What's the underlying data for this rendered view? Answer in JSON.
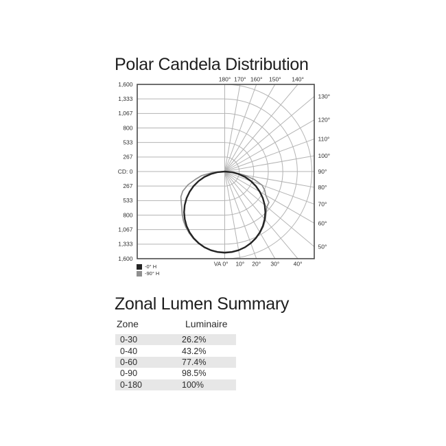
{
  "ui": {
    "polar": {
      "title": "Polar Candela Distribution",
      "left_ticks": [
        "1,600",
        "1,333",
        "1,067",
        "800",
        "533",
        "267",
        "CD: 0",
        "267",
        "533",
        "800",
        "1,067",
        "1,333",
        "1,600"
      ],
      "top_ticks": [
        {
          "label": "180°",
          "angle": 180
        },
        {
          "label": "170°",
          "angle": 170
        },
        {
          "label": "160°",
          "angle": 160
        },
        {
          "label": "150°",
          "angle": 150
        },
        {
          "label": "140°",
          "angle": 140
        }
      ],
      "right_ticks": [
        {
          "label": "130°",
          "angle": 130
        },
        {
          "label": "120°",
          "angle": 120
        },
        {
          "label": "110°",
          "angle": 110
        },
        {
          "label": "100°",
          "angle": 100
        },
        {
          "label": "90°",
          "angle": 90
        },
        {
          "label": "80°",
          "angle": 80
        },
        {
          "label": "70°",
          "angle": 70
        },
        {
          "label": "60°",
          "angle": 60
        },
        {
          "label": "50°",
          "angle": 50
        }
      ],
      "bottom_ticks": [
        {
          "label": "VA 0°",
          "angle": 0
        },
        {
          "label": "10°",
          "angle": 10
        },
        {
          "label": "20°",
          "angle": 20
        },
        {
          "label": "30°",
          "angle": 30
        },
        {
          "label": "40°",
          "angle": 40
        }
      ],
      "legend": [
        {
          "label": "-0° H",
          "color": "#242424"
        },
        {
          "label": "-90° H",
          "color": "#8f8f8f"
        }
      ]
    },
    "zonal": {
      "title": "Zonal Lumen Summary",
      "columns": [
        "Zone",
        "Luminaire"
      ],
      "rows": [
        [
          "0-30",
          "26.2%"
        ],
        [
          "0-40",
          "43.2%"
        ],
        [
          "0-60",
          "77.4%"
        ],
        [
          "0-90",
          "98.5%"
        ],
        [
          "0-180",
          "100%"
        ]
      ]
    }
  },
  "chart_data": [
    {
      "type": "polar_candela",
      "title": "Polar Candela Distribution",
      "radial_axis": {
        "label": "CD: 0",
        "ticks": [
          0,
          267,
          533,
          800,
          1067,
          1333,
          1600
        ],
        "max": 1600
      },
      "angle_step_deg": 10,
      "angle_labels_deg": [
        0,
        10,
        20,
        30,
        40,
        50,
        60,
        70,
        80,
        90,
        100,
        110,
        120,
        130,
        140,
        150,
        160,
        170,
        180
      ],
      "vertical_angle_label_prefix": "VA",
      "grid": true,
      "series": [
        {
          "name": "-0° H",
          "color": "#242424",
          "angles_deg": [
            0,
            5,
            10,
            15,
            20,
            25,
            30,
            35,
            40,
            45,
            50,
            55,
            60,
            65,
            70,
            75,
            80,
            85,
            90
          ],
          "candela_left": [
            1490,
            1484,
            1467,
            1439,
            1400,
            1350,
            1290,
            1221,
            1141,
            1054,
            958,
            855,
            745,
            630,
            510,
            386,
            259,
            130,
            0
          ],
          "candela_right": [
            1490,
            1484,
            1467,
            1439,
            1400,
            1350,
            1290,
            1221,
            1141,
            1054,
            958,
            855,
            745,
            630,
            510,
            386,
            259,
            130,
            0
          ]
        },
        {
          "name": "-90° H",
          "color": "#8f8f8f",
          "angles_deg": [
            0,
            5,
            10,
            15,
            20,
            25,
            30,
            35,
            40,
            45,
            50,
            55,
            60,
            65,
            70,
            75,
            80,
            85,
            90
          ],
          "candela_left": [
            1480,
            1478,
            1468,
            1445,
            1405,
            1360,
            1305,
            1245,
            1180,
            1105,
            1030,
            975,
            930,
            850,
            720,
            560,
            430,
            230,
            40
          ],
          "candela_right": [
            1480,
            1478,
            1466,
            1442,
            1402,
            1355,
            1298,
            1235,
            1160,
            1075,
            1010,
            990,
            870,
            810,
            730,
            560,
            350,
            160,
            20
          ]
        }
      ],
      "legend_position": "bottom-left"
    },
    {
      "type": "table",
      "title": "Zonal Lumen Summary",
      "columns": [
        "Zone",
        "Luminaire"
      ],
      "rows": [
        [
          "0-30",
          "26.2%"
        ],
        [
          "0-40",
          "43.2%"
        ],
        [
          "0-60",
          "77.4%"
        ],
        [
          "0-90",
          "98.5%"
        ],
        [
          "0-180",
          "100%"
        ]
      ]
    }
  ]
}
